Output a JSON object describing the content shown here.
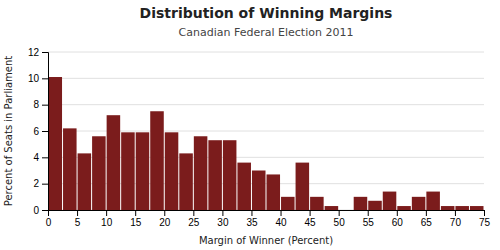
{
  "chart_data": {
    "type": "histogram",
    "title": "Distribution of Winning Margins",
    "subtitle": "Canadian Federal Election 2011",
    "xlabel": "Margin of Winner (Percent)",
    "ylabel": "Percent of Seats in Parliament",
    "bins": [
      0,
      2.5,
      5,
      7.5,
      10,
      12.5,
      15,
      17.5,
      20,
      22.5,
      25,
      27.5,
      30,
      32.5,
      35,
      37.5,
      40,
      42.5,
      45,
      47.5,
      50,
      52.5,
      55,
      57.5,
      60,
      62.5,
      65,
      67.5,
      70,
      72.5,
      75
    ],
    "values": [
      10.1,
      6.2,
      4.3,
      5.6,
      7.2,
      5.9,
      5.9,
      7.5,
      5.9,
      4.3,
      5.6,
      5.3,
      5.3,
      3.6,
      3.0,
      2.7,
      1.0,
      3.6,
      1.0,
      0.3,
      0.0,
      1.0,
      0.7,
      1.4,
      0.3,
      1.0,
      1.4,
      0.3,
      0.3,
      0.3
    ],
    "color": "#7B1C1C",
    "xlim": [
      0,
      75
    ],
    "xticks": [
      0,
      5,
      10,
      15,
      20,
      25,
      30,
      35,
      40,
      45,
      50,
      55,
      60,
      65,
      70,
      75
    ],
    "ylim": [
      0,
      12
    ],
    "yticks": [
      0,
      2,
      4,
      6,
      8,
      10,
      12
    ],
    "grid": true
  }
}
